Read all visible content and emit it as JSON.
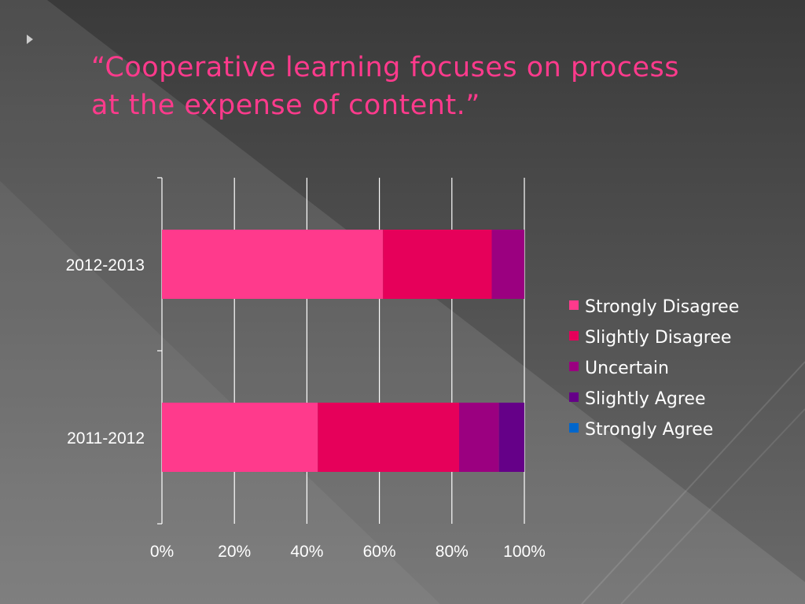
{
  "slide": {
    "title_lines": [
      "“Cooperative learning focuses on process",
      "at the expense of content.”"
    ]
  },
  "chart_data": {
    "type": "bar",
    "orientation": "horizontal",
    "stacked": "percent",
    "categories": [
      "2012-2013",
      "2011-2012"
    ],
    "xlim": [
      0,
      100
    ],
    "x_ticks": [
      "0%",
      "20%",
      "40%",
      "60%",
      "80%",
      "100%"
    ],
    "grid": true,
    "legend_position": "right",
    "series": [
      {
        "name": "Strongly Disagree",
        "color": "#ff3a8c",
        "values": [
          61,
          43
        ]
      },
      {
        "name": "Slightly Disagree",
        "color": "#e6005a",
        "values": [
          30,
          39
        ]
      },
      {
        "name": "Uncertain",
        "color": "#9b0080",
        "values": [
          9,
          11
        ]
      },
      {
        "name": "Slightly Agree",
        "color": "#650088",
        "values": [
          0,
          7
        ]
      },
      {
        "name": "Strongly Agree",
        "color": "#0066cc",
        "values": [
          0,
          0
        ]
      }
    ]
  }
}
